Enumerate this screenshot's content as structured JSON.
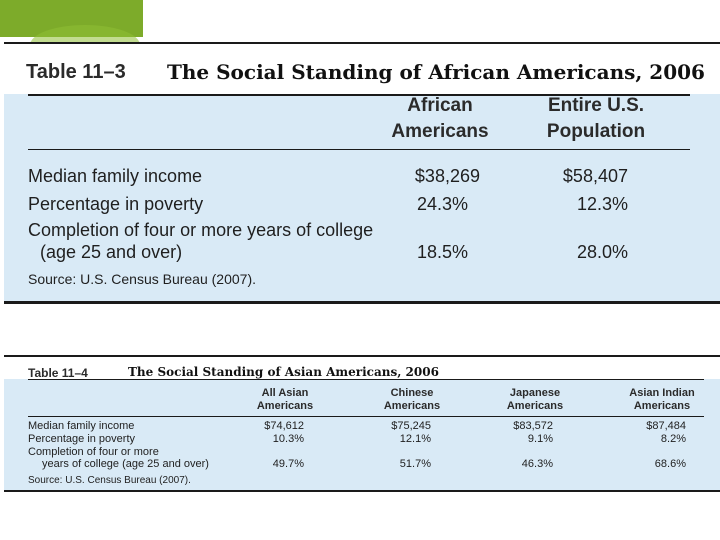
{
  "table1": {
    "number": "Table 11–3",
    "title": "The Social Standing of African Americans, 2006",
    "col1": [
      "African",
      "Americans"
    ],
    "col2": [
      "Entire U.S.",
      "Population"
    ],
    "rows": [
      {
        "label": "Median family income",
        "v1": "$38,269",
        "v2": "$58,407"
      },
      {
        "label": "Percentage in poverty",
        "v1": "24.3%",
        "v2": "12.3%"
      },
      {
        "label": "Completion of four or more years of college",
        "label2": "(age 25 and over)",
        "v1": "18.5%",
        "v2": "28.0%"
      }
    ],
    "source": "Source: U.S. Census Bureau (2007)."
  },
  "table2": {
    "number": "Table 11–4",
    "title": "The Social Standing of Asian Americans, 2006",
    "cols": [
      [
        "All Asian",
        "Americans"
      ],
      [
        "Chinese",
        "Americans"
      ],
      [
        "Japanese",
        "Americans"
      ],
      [
        "Asian Indian",
        "Americans"
      ]
    ],
    "rows": [
      {
        "label": "Median family income",
        "values": [
          "$74,612",
          "$75,245",
          "$83,572",
          "$87,484"
        ]
      },
      {
        "label": "Percentage in poverty",
        "values": [
          "10.3%",
          "12.1%",
          "9.1%",
          "8.2%"
        ]
      },
      {
        "label": "Completion of four or more",
        "label2": "years of college (age 25 and over)",
        "values": [
          "49.7%",
          "51.7%",
          "46.3%",
          "68.6%"
        ]
      }
    ],
    "source": "Source: U.S. Census Bureau (2007)."
  }
}
